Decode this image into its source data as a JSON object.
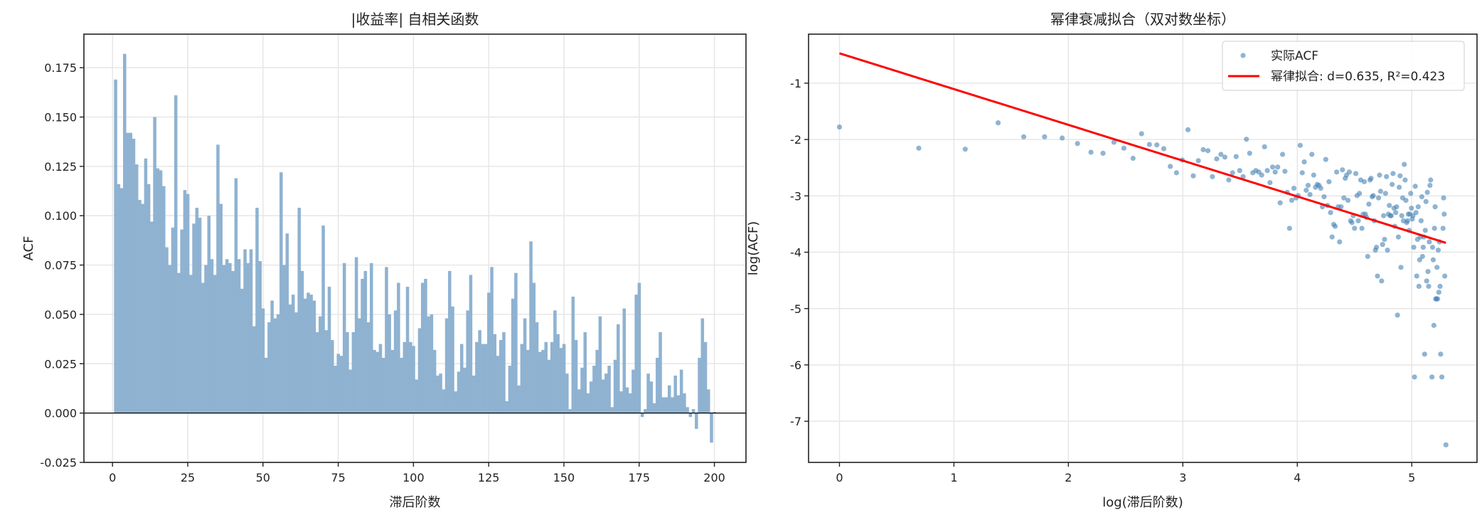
{
  "chart_data": [
    {
      "type": "bar",
      "title": "|收益率| 自相关函数",
      "xlabel": "滞后阶数",
      "ylabel": "ACF",
      "xlim": [
        -9.5,
        210.5
      ],
      "ylim": [
        -0.025,
        0.192
      ],
      "xticks": [
        0,
        25,
        50,
        75,
        100,
        125,
        150,
        175,
        200
      ],
      "yticks": [
        "-0.025",
        "0.000",
        "0.025",
        "0.050",
        "0.075",
        "0.100",
        "0.125",
        "0.150",
        "0.175"
      ],
      "grid": true,
      "bar_color": "#8fb2d1",
      "x_start": 1,
      "values": [
        0.169,
        0.116,
        0.114,
        0.182,
        0.142,
        0.142,
        0.139,
        0.126,
        0.108,
        0.106,
        0.129,
        0.116,
        0.097,
        0.15,
        0.124,
        0.123,
        0.115,
        0.084,
        0.075,
        0.094,
        0.161,
        0.071,
        0.093,
        0.113,
        0.111,
        0.07,
        0.096,
        0.104,
        0.099,
        0.066,
        0.075,
        0.1,
        0.078,
        0.07,
        0.136,
        0.106,
        0.075,
        0.078,
        0.076,
        0.072,
        0.119,
        0.078,
        0.063,
        0.083,
        0.076,
        0.083,
        0.044,
        0.104,
        0.077,
        0.053,
        0.028,
        0.046,
        0.057,
        0.048,
        0.05,
        0.122,
        0.075,
        0.091,
        0.055,
        0.06,
        0.051,
        0.104,
        0.072,
        0.058,
        0.061,
        0.06,
        0.057,
        0.041,
        0.049,
        0.095,
        0.042,
        0.064,
        0.037,
        0.024,
        0.03,
        0.029,
        0.076,
        0.041,
        0.022,
        0.041,
        0.079,
        0.048,
        0.068,
        0.072,
        0.046,
        0.076,
        0.032,
        0.031,
        0.035,
        0.028,
        0.074,
        0.05,
        0.032,
        0.052,
        0.066,
        0.028,
        0.036,
        0.064,
        0.036,
        0.034,
        0.017,
        0.043,
        0.066,
        0.068,
        0.049,
        0.05,
        0.032,
        0.019,
        0.02,
        0.012,
        0.048,
        0.072,
        0.054,
        0.011,
        0.021,
        0.035,
        0.023,
        0.052,
        0.07,
        0.019,
        0.036,
        0.042,
        0.035,
        0.035,
        0.061,
        0.074,
        0.04,
        0.029,
        0.037,
        0.041,
        0.006,
        0.024,
        0.058,
        0.071,
        0.014,
        0.035,
        0.048,
        0.032,
        0.087,
        0.066,
        0.046,
        0.031,
        0.032,
        0.036,
        0.027,
        0.036,
        0.052,
        0.04,
        0.033,
        0.035,
        0.02,
        0.002,
        0.059,
        0.037,
        0.012,
        0.023,
        0.041,
        0.01,
        0.016,
        0.024,
        0.032,
        0.049,
        0.017,
        0.02,
        0.024,
        0.003,
        0.027,
        0.045,
        0.011,
        0.053,
        0.013,
        0.01,
        0.022,
        0.06,
        0.066,
        -0.002,
        0.002,
        0.02,
        0.016,
        0.005,
        0.028,
        0.041,
        0.008,
        0.008,
        0.014,
        0.008,
        0.019,
        0.009,
        0.022,
        0.01,
        0.003,
        -0.002,
        0.002,
        -0.008,
        0.028,
        0.048,
        0.036,
        0.012,
        -0.015,
        0.0006
      ]
    },
    {
      "type": "scatter",
      "title": "幂律衰减拟合（双对数坐标）",
      "xlabel": "log(滞后阶数)",
      "ylabel": "log(ACF)",
      "xlim": [
        -0.27,
        5.57
      ],
      "ylim": [
        -7.73,
        -0.13
      ],
      "xticks": [
        0,
        1,
        2,
        3,
        4,
        5
      ],
      "yticks": [
        -7,
        -6,
        -5,
        -4,
        -3,
        -2,
        -1
      ],
      "grid": true,
      "legend_position": "top-right",
      "point_color": "#4682b4",
      "line_color": "#ff0000",
      "series": [
        {
          "name": "实际ACF",
          "kind": "scatter",
          "source": "log of positive ACF values vs log lag"
        },
        {
          "name": "幂律拟合: d=0.635, R²=0.423",
          "kind": "line",
          "d": 0.635,
          "r2": 0.423,
          "intercept": -0.47,
          "slope": -0.635,
          "x_range": [
            0,
            5.298
          ]
        }
      ]
    }
  ]
}
